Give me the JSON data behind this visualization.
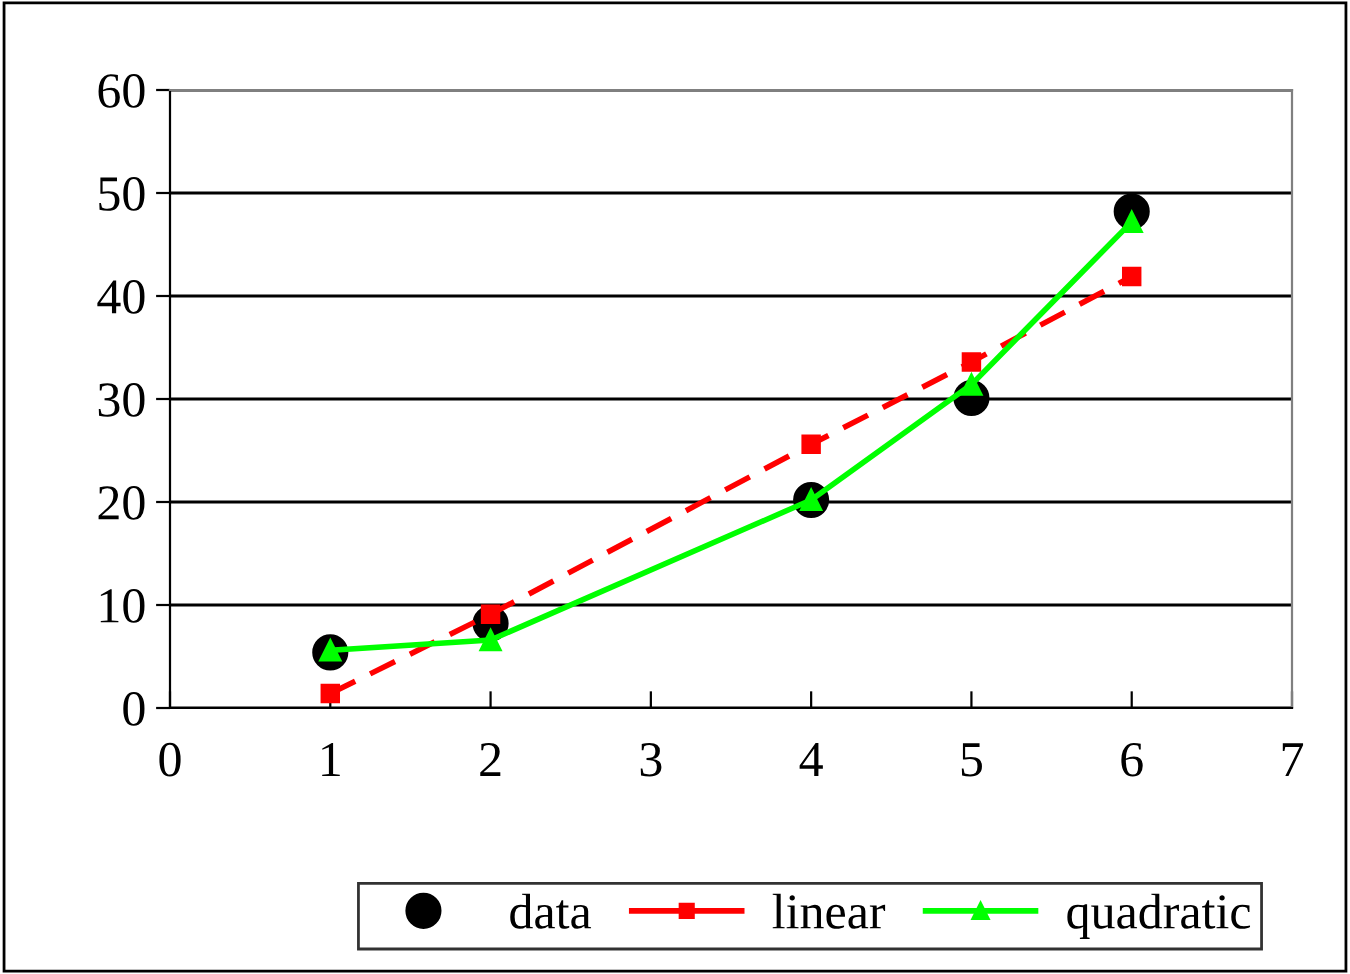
{
  "chart_data": {
    "type": "line",
    "x": [
      1,
      2,
      4,
      5,
      6
    ],
    "series": [
      {
        "name": "data",
        "type": "scatter",
        "color": "#000000",
        "marker": "circle",
        "values": [
          5.4,
          8.2,
          20.2,
          30.1,
          48.2
        ]
      },
      {
        "name": "linear",
        "color": "#ff0000",
        "marker": "square",
        "line_style": "dashed",
        "values": [
          1.4,
          9.1,
          25.6,
          33.6,
          41.9
        ]
      },
      {
        "name": "quadratic",
        "color": "#00ff00",
        "marker": "triangle",
        "line_style": "solid",
        "values": [
          5.6,
          6.6,
          20.2,
          31.4,
          47.2
        ]
      }
    ],
    "xlim": [
      0,
      7
    ],
    "xticks": [
      0,
      1,
      2,
      3,
      4,
      5,
      6,
      7
    ],
    "ylim": [
      0,
      60
    ],
    "yticks": [
      0,
      10,
      20,
      30,
      40,
      50,
      60
    ],
    "grid": "y",
    "legend": "bottom"
  }
}
